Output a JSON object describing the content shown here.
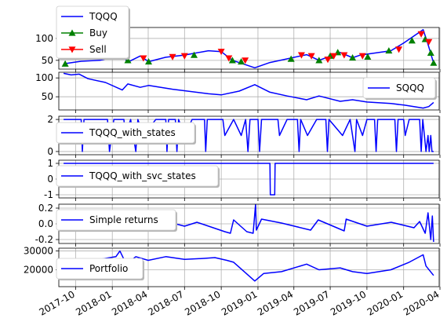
{
  "chart_data": [
    {
      "type": "line",
      "ylim": [
        30,
        125
      ],
      "yticks": [
        "50",
        "100"
      ],
      "ytick_values": [
        50,
        100
      ],
      "legend_location": "upper left, above axes",
      "series": [
        {
          "name": "TQQQ",
          "color": "#0000ff",
          "points": [
            [
              "2017-09-01",
              42
            ],
            [
              "2017-10-15",
              48
            ],
            [
              "2017-12-01",
              50
            ],
            [
              "2018-01-26",
              62
            ],
            [
              "2018-02-09",
              46
            ],
            [
              "2018-03-12",
              60
            ],
            [
              "2018-04-02",
              47
            ],
            [
              "2018-05-15",
              57
            ],
            [
              "2018-07-01",
              62
            ],
            [
              "2018-08-30",
              72
            ],
            [
              "2018-10-01",
              70
            ],
            [
              "2018-10-29",
              50
            ],
            [
              "2018-12-24",
              33
            ],
            [
              "2019-01-31",
              45
            ],
            [
              "2019-05-03",
              63
            ],
            [
              "2019-06-03",
              50
            ],
            [
              "2019-07-26",
              68
            ],
            [
              "2019-08-26",
              56
            ],
            [
              "2019-09-15",
              62
            ],
            [
              "2019-11-30",
              72
            ],
            [
              "2020-01-02",
              90
            ],
            [
              "2020-02-19",
              120
            ],
            [
              "2020-03-01",
              90
            ],
            [
              "2020-03-16",
              44
            ]
          ]
        },
        {
          "name": "Buy",
          "color": "#008000",
          "marker": "triangle-up",
          "points": [
            [
              "2017-09-05",
              42
            ],
            [
              "2018-02-09",
              50
            ],
            [
              "2018-04-02",
              47
            ],
            [
              "2018-07-25",
              62
            ],
            [
              "2018-10-29",
              50
            ],
            [
              "2018-11-20",
              47
            ],
            [
              "2019-03-25",
              53
            ],
            [
              "2019-06-03",
              50
            ],
            [
              "2019-07-01",
              60
            ],
            [
              "2019-07-20",
              68
            ],
            [
              "2019-08-26",
              56
            ],
            [
              "2019-10-03",
              58
            ],
            [
              "2019-11-25",
              72
            ],
            [
              "2020-01-22",
              95
            ],
            [
              "2020-02-24",
              98
            ],
            [
              "2020-03-09",
              67
            ],
            [
              "2020-03-16",
              44
            ]
          ]
        },
        {
          "name": "Sell",
          "color": "#ff0000",
          "marker": "triangle-down",
          "points": [
            [
              "2018-03-20",
              55
            ],
            [
              "2018-06-01",
              58
            ],
            [
              "2018-07-01",
              60
            ],
            [
              "2018-10-01",
              70
            ],
            [
              "2018-10-20",
              55
            ],
            [
              "2018-11-30",
              50
            ],
            [
              "2019-04-20",
              62
            ],
            [
              "2019-05-15",
              60
            ],
            [
              "2019-06-25",
              52
            ],
            [
              "2019-07-10",
              60
            ],
            [
              "2019-08-05",
              62
            ],
            [
              "2019-09-20",
              60
            ],
            [
              "2019-12-20",
              75
            ],
            [
              "2020-02-14",
              110
            ],
            [
              "2020-03-04",
              92
            ]
          ]
        }
      ]
    },
    {
      "type": "line",
      "ylim": [
        15,
        115
      ],
      "yticks": [
        "50",
        "100"
      ],
      "ytick_values": [
        50,
        100
      ],
      "legend_location": "right",
      "series": [
        {
          "name": "SQQQ",
          "color": "#0000ff",
          "points": [
            [
              "2017-09-01",
              112
            ],
            [
              "2017-09-20",
              108
            ],
            [
              "2017-10-10",
              110
            ],
            [
              "2017-11-01",
              98
            ],
            [
              "2017-12-15",
              88
            ],
            [
              "2018-01-26",
              68
            ],
            [
              "2018-02-09",
              84
            ],
            [
              "2018-03-12",
              75
            ],
            [
              "2018-04-02",
              80
            ],
            [
              "2018-06-01",
              70
            ],
            [
              "2018-08-30",
              58
            ],
            [
              "2018-10-01",
              55
            ],
            [
              "2018-11-15",
              65
            ],
            [
              "2018-12-24",
              82
            ],
            [
              "2019-01-31",
              62
            ],
            [
              "2019-03-15",
              52
            ],
            [
              "2019-05-03",
              42
            ],
            [
              "2019-06-03",
              52
            ],
            [
              "2019-07-26",
              38
            ],
            [
              "2019-08-26",
              42
            ],
            [
              "2019-10-01",
              36
            ],
            [
              "2019-11-30",
              32
            ],
            [
              "2020-01-02",
              28
            ],
            [
              "2020-02-19",
              20
            ],
            [
              "2020-03-04",
              24
            ],
            [
              "2020-03-16",
              35
            ]
          ]
        }
      ]
    },
    {
      "type": "line",
      "ylim": [
        -0.2,
        2.2
      ],
      "yticks": [
        "0",
        "2"
      ],
      "ytick_values": [
        0,
        2
      ],
      "legend_location": "upper left",
      "series": [
        {
          "name": "TQQQ_with_states",
          "color": "#0000ff",
          "points": [
            [
              "2017-09-01",
              2
            ],
            [
              "2017-10-15",
              2
            ],
            [
              "2017-10-18",
              0
            ],
            [
              "2017-10-22",
              2
            ],
            [
              "2017-12-20",
              2
            ],
            [
              "2017-12-25",
              0
            ],
            [
              "2018-01-05",
              2
            ],
            [
              "2018-01-30",
              2
            ],
            [
              "2018-02-02",
              1
            ],
            [
              "2018-02-16",
              2
            ],
            [
              "2018-03-01",
              0
            ],
            [
              "2018-03-06",
              2
            ],
            [
              "2018-03-20",
              1
            ],
            [
              "2018-04-20",
              2
            ],
            [
              "2018-05-15",
              2
            ],
            [
              "2018-05-18",
              0
            ],
            [
              "2018-05-22",
              2
            ],
            [
              "2018-06-08",
              2
            ],
            [
              "2018-06-12",
              0
            ],
            [
              "2018-06-16",
              2
            ],
            [
              "2018-07-01",
              1
            ],
            [
              "2018-07-20",
              2
            ],
            [
              "2018-08-20",
              2
            ],
            [
              "2018-08-23",
              0
            ],
            [
              "2018-08-27",
              2
            ],
            [
              "2018-10-05",
              2
            ],
            [
              "2018-10-10",
              1
            ],
            [
              "2018-11-01",
              2
            ],
            [
              "2018-11-20",
              1
            ],
            [
              "2018-12-01",
              2
            ],
            [
              "2018-12-07",
              0
            ],
            [
              "2018-12-12",
              2
            ],
            [
              "2019-01-01",
              2
            ],
            [
              "2019-01-05",
              0
            ],
            [
              "2019-01-10",
              2
            ],
            [
              "2019-02-20",
              2
            ],
            [
              "2019-02-24",
              1
            ],
            [
              "2019-03-15",
              2
            ],
            [
              "2019-04-10",
              2
            ],
            [
              "2019-04-14",
              0
            ],
            [
              "2019-04-18",
              2
            ],
            [
              "2019-05-05",
              1
            ],
            [
              "2019-05-28",
              2
            ],
            [
              "2019-06-20",
              2
            ],
            [
              "2019-06-24",
              0
            ],
            [
              "2019-06-28",
              2
            ],
            [
              "2019-08-01",
              1
            ],
            [
              "2019-08-20",
              2
            ],
            [
              "2019-09-01",
              0
            ],
            [
              "2019-09-05",
              2
            ],
            [
              "2019-09-20",
              1
            ],
            [
              "2019-10-01",
              2
            ],
            [
              "2019-10-20",
              2
            ],
            [
              "2019-10-24",
              0
            ],
            [
              "2019-10-28",
              2
            ],
            [
              "2019-12-10",
              2
            ],
            [
              "2019-12-14",
              0
            ],
            [
              "2019-12-18",
              2
            ],
            [
              "2020-01-01",
              2
            ],
            [
              "2020-01-05",
              1
            ],
            [
              "2020-01-15",
              2
            ],
            [
              "2020-02-10",
              2
            ],
            [
              "2020-02-14",
              0
            ],
            [
              "2020-02-18",
              2
            ],
            [
              "2020-02-22",
              1
            ],
            [
              "2020-02-26",
              0
            ],
            [
              "2020-03-02",
              1
            ],
            [
              "2020-03-05",
              0
            ],
            [
              "2020-03-09",
              1
            ],
            [
              "2020-03-12",
              0
            ],
            [
              "2020-03-16",
              0
            ]
          ]
        }
      ]
    },
    {
      "type": "line",
      "ylim": [
        -1.2,
        1.2
      ],
      "yticks": [
        "-1",
        "0",
        "1"
      ],
      "ytick_values": [
        -1,
        0,
        1
      ],
      "legend_location": "upper left",
      "series": [
        {
          "name": "TQQQ_with_svc_states",
          "color": "#0000ff",
          "points": [
            [
              "2017-09-01",
              1
            ],
            [
              "2019-01-31",
              1
            ],
            [
              "2019-02-01",
              -1
            ],
            [
              "2019-02-12",
              -1
            ],
            [
              "2019-02-13",
              1
            ],
            [
              "2020-03-16",
              1
            ]
          ]
        }
      ]
    },
    {
      "type": "line",
      "ylim": [
        -0.25,
        0.25
      ],
      "yticks": [
        "-0.2",
        "0.0",
        "0.2"
      ],
      "ytick_values": [
        -0.2,
        0,
        0.2
      ],
      "legend_location": "upper left",
      "series": [
        {
          "name": "Simple returns",
          "color": "#0000ff",
          "points": [
            [
              "2017-09-01",
              0.0
            ],
            [
              "2017-10-01",
              0.01
            ],
            [
              "2017-11-01",
              -0.01
            ],
            [
              "2018-01-15",
              0.02
            ],
            [
              "2018-02-05",
              -0.07
            ],
            [
              "2018-02-10",
              0.05
            ],
            [
              "2018-03-20",
              -0.05
            ],
            [
              "2018-04-05",
              0.04
            ],
            [
              "2018-06-01",
              0.01
            ],
            [
              "2018-07-01",
              -0.03
            ],
            [
              "2018-08-01",
              0.02
            ],
            [
              "2018-10-10",
              -0.1
            ],
            [
              "2018-10-24",
              -0.12
            ],
            [
              "2018-11-01",
              0.05
            ],
            [
              "2018-12-04",
              -0.1
            ],
            [
              "2018-12-20",
              -0.12
            ],
            [
              "2018-12-26",
              0.25
            ],
            [
              "2018-12-28",
              -0.08
            ],
            [
              "2019-01-10",
              0.06
            ],
            [
              "2019-03-01",
              0.01
            ],
            [
              "2019-05-13",
              -0.08
            ],
            [
              "2019-06-01",
              0.05
            ],
            [
              "2019-08-05",
              -0.09
            ],
            [
              "2019-08-10",
              0.06
            ],
            [
              "2019-10-01",
              -0.03
            ],
            [
              "2019-12-01",
              0.02
            ],
            [
              "2020-01-27",
              -0.05
            ],
            [
              "2020-02-10",
              0.03
            ],
            [
              "2020-02-24",
              -0.12
            ],
            [
              "2020-03-02",
              0.14
            ],
            [
              "2020-03-09",
              -0.2
            ],
            [
              "2020-03-13",
              0.1
            ],
            [
              "2020-03-16",
              -0.23
            ]
          ]
        }
      ]
    },
    {
      "type": "line",
      "ylim": [
        11000,
        31500
      ],
      "yticks": [
        "20000",
        "30000"
      ],
      "ytick_values": [
        20000,
        30000
      ],
      "legend_location": "upper left",
      "series": [
        {
          "name": "Portfolio",
          "color": "#0000ff",
          "points": [
            [
              "2017-09-01",
              23000
            ],
            [
              "2017-11-01",
              24500
            ],
            [
              "2018-01-10",
              27000
            ],
            [
              "2018-01-20",
              30000
            ],
            [
              "2018-02-05",
              23000
            ],
            [
              "2018-03-01",
              27000
            ],
            [
              "2018-04-01",
              25000
            ],
            [
              "2018-05-15",
              27000
            ],
            [
              "2018-07-01",
              25500
            ],
            [
              "2018-08-15",
              26000
            ],
            [
              "2018-09-15",
              26500
            ],
            [
              "2018-10-15",
              25000
            ],
            [
              "2018-11-01",
              24000
            ],
            [
              "2018-12-24",
              14000
            ],
            [
              "2019-01-15",
              18000
            ],
            [
              "2019-03-01",
              19000
            ],
            [
              "2019-05-03",
              23000
            ],
            [
              "2019-06-03",
              20000
            ],
            [
              "2019-07-26",
              21000
            ],
            [
              "2019-08-26",
              19000
            ],
            [
              "2019-10-01",
              18000
            ],
            [
              "2019-11-30",
              20000
            ],
            [
              "2020-01-15",
              24000
            ],
            [
              "2020-02-19",
              28000
            ],
            [
              "2020-02-26",
              22000
            ],
            [
              "2020-03-16",
              17000
            ]
          ]
        }
      ]
    }
  ],
  "shared_x": {
    "type": "date",
    "xlim": [
      "2017-08-20",
      "2020-03-30"
    ],
    "ticks": [
      {
        "value": "2017-10-01",
        "label": "2017-10"
      },
      {
        "value": "2018-01-01",
        "label": "2018-01"
      },
      {
        "value": "2018-04-01",
        "label": "2018-04"
      },
      {
        "value": "2018-07-01",
        "label": "2018-07"
      },
      {
        "value": "2018-10-01",
        "label": "2018-10"
      },
      {
        "value": "2019-01-01",
        "label": "2019-01"
      },
      {
        "value": "2019-04-01",
        "label": "2019-04"
      },
      {
        "value": "2019-07-01",
        "label": "2019-07"
      },
      {
        "value": "2019-10-01",
        "label": "2019-10"
      },
      {
        "value": "2020-01-01",
        "label": "2020-01"
      },
      {
        "value": "2020-04-01",
        "label": "2020-04"
      }
    ]
  },
  "colors": {
    "line": "#0000ff",
    "buy": "#008000",
    "sell": "#ff0000",
    "grid": "#b0b0b0"
  },
  "grid": true
}
